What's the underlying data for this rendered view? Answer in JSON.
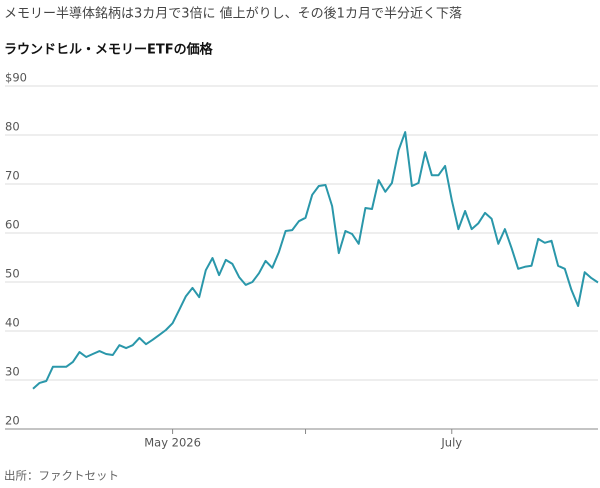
{
  "chart_data": {
    "type": "line",
    "title": "メモリー半導体銘柄は3カ月で3倍に 値上がりし、その後1カ月で半分近く下落",
    "subtitle": "ラウンドヒル・メモリーETFの価格",
    "source": "出所：ファクトセット",
    "x": [
      0,
      1,
      2,
      3,
      4,
      5,
      6,
      7,
      8,
      9,
      10,
      11,
      12,
      13,
      14,
      15,
      16,
      17,
      18,
      19,
      20,
      21,
      22,
      23,
      24,
      25,
      26,
      27,
      28,
      29,
      30,
      31,
      32,
      33,
      34,
      35,
      36,
      37,
      38,
      39,
      40,
      41,
      42,
      43,
      44,
      45,
      46,
      47,
      48,
      49,
      50,
      51,
      52,
      53,
      54,
      55,
      56,
      57,
      58,
      59,
      60,
      61,
      62,
      63,
      64,
      65,
      66,
      67,
      68,
      69,
      70,
      71,
      72,
      73,
      74,
      75,
      76,
      77,
      78,
      79,
      80,
      81,
      82,
      83,
      84,
      85
    ],
    "series": [
      {
        "name": "ラウンドヒル・メモリーETF",
        "color": "#2a97aa",
        "values": [
          28.2,
          29.4,
          29.8,
          32.7,
          32.7,
          32.7,
          33.7,
          35.7,
          34.7,
          35.3,
          35.9,
          35.3,
          35.1,
          37.1,
          36.5,
          37.1,
          38.6,
          37.3,
          38.2,
          39.2,
          40.2,
          41.6,
          44.3,
          47.1,
          48.8,
          46.9,
          52.4,
          54.9,
          51.4,
          54.5,
          53.7,
          51.0,
          49.4,
          50.0,
          51.8,
          54.3,
          52.9,
          56.1,
          60.4,
          60.6,
          62.4,
          63.1,
          67.8,
          69.6,
          69.8,
          65.5,
          55.9,
          60.4,
          59.8,
          57.8,
          65.1,
          64.9,
          70.8,
          68.4,
          70.2,
          76.9,
          80.6,
          69.6,
          70.2,
          76.5,
          71.8,
          71.8,
          73.7,
          66.7,
          60.8,
          64.5,
          60.8,
          62.0,
          64.1,
          62.9,
          57.8,
          60.8,
          56.9,
          52.7,
          53.1,
          53.3,
          58.8,
          58.0,
          58.4,
          53.3,
          52.7,
          48.4,
          45.1,
          52.0,
          50.8,
          49.9
        ]
      }
    ],
    "xlim": [
      0,
      85
    ],
    "xticks": [
      {
        "value": 21,
        "label": "May 2026"
      },
      41,
      {
        "value": 63,
        "label": "July"
      }
    ],
    "ylim": [
      20,
      90
    ],
    "yticks": [
      20,
      30,
      40,
      50,
      60,
      70,
      80,
      {
        "value": 90,
        "label": "$90"
      }
    ],
    "grid": true
  }
}
